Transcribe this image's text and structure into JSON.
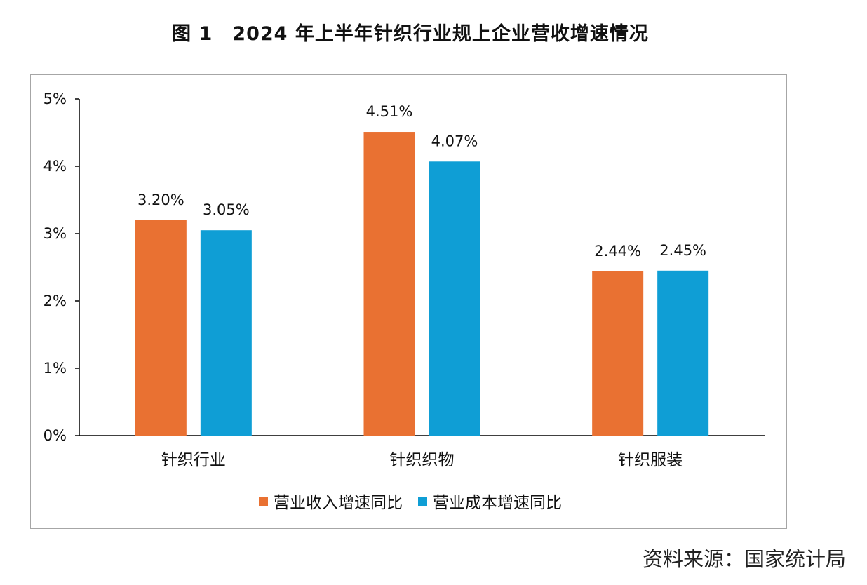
{
  "title": "图 1　2024 年上半年针织行业规上企业营收增速情况",
  "source": "资料来源：国家统计局",
  "colors": {
    "revenue": "#E97132",
    "cost": "#0F9ED5"
  },
  "chart_data": {
    "type": "bar",
    "title": "图 1　2024 年上半年针织行业规上企业营收增速情况",
    "categories": [
      "针织行业",
      "针织织物",
      "针织服装"
    ],
    "series": [
      {
        "name": "营业收入增速同比",
        "values": [
          3.2,
          4.51,
          2.44
        ],
        "labels": [
          "3.20%",
          "4.51%",
          "2.44%"
        ]
      },
      {
        "name": "营业成本增速同比",
        "values": [
          3.05,
          4.07,
          2.45
        ],
        "labels": [
          "3.05%",
          "4.07%",
          "2.45%"
        ]
      }
    ],
    "y_ticks": [
      "0%",
      "1%",
      "2%",
      "3%",
      "4%",
      "5%"
    ],
    "ylim": [
      0,
      5
    ],
    "grid": false,
    "legend": "bottom"
  }
}
